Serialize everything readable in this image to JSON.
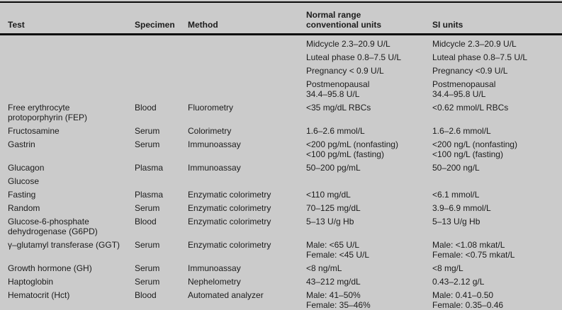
{
  "colors": {
    "background": "#cbcbcb",
    "text": "#1c1c1c",
    "rule": "#0a0a0a"
  },
  "table": {
    "header": {
      "test": "Test",
      "specimen": "Specimen",
      "method": "Method",
      "conventional": "Normal range\nconventional units",
      "si": "SI units"
    },
    "rows": [
      {
        "test": "",
        "specimen": "",
        "method": "",
        "conventional": "Midcycle 2.3–20.9 U/L",
        "si": "Midcycle 2.3–20.9 U/L"
      },
      {
        "test": "",
        "specimen": "",
        "method": "",
        "conventional": "Luteal phase 0.8–7.5 U/L",
        "si": "Luteal phase 0.8–7.5 U/L"
      },
      {
        "test": "",
        "specimen": "",
        "method": "",
        "conventional": "Pregnancy < 0.9 U/L",
        "si": "Pregnancy <0.9 U/L"
      },
      {
        "test": "",
        "specimen": "",
        "method": "",
        "conventional": "Postmenopausal\n34.4–95.8 U/L",
        "si": "Postmenopausal\n34.4–95.8 U/L"
      },
      {
        "test": "Free erythrocyte\nprotoporphyrin (FEP)",
        "specimen": "Blood",
        "method": "Fluorometry",
        "conventional": "<35 mg/dL RBCs",
        "si": "<0.62 mmol/L RBCs"
      },
      {
        "test": "Fructosamine",
        "specimen": "Serum",
        "method": "Colorimetry",
        "conventional": "1.6–2.6 mmol/L",
        "si": "1.6–2.6 mmol/L"
      },
      {
        "test": "Gastrin",
        "specimen": "Serum",
        "method": "Immunoassay",
        "conventional": "<200 pg/mL (nonfasting)\n<100 pg/mL (fasting)",
        "si": "<200 ng/L (nonfasting)\n<100 ng/L (fasting)"
      },
      {
        "test": "Glucagon",
        "specimen": "Plasma",
        "method": "Immunoassay",
        "conventional": "50–200 pg/mL",
        "si": "50–200 ng/L"
      },
      {
        "test": "Glucose",
        "specimen": "",
        "method": "",
        "conventional": "",
        "si": ""
      },
      {
        "test": "Fasting",
        "specimen": "Plasma",
        "method": "Enzymatic colorimetry",
        "conventional": "<110 mg/dL",
        "si": "<6.1 mmol/L"
      },
      {
        "test": "Random",
        "specimen": "Serum",
        "method": "Enzymatic colorimetry",
        "conventional": "70–125 mg/dL",
        "si": "3.9–6.9 mmol/L"
      },
      {
        "test": "Glucose-6-phosphate\ndehydrogenase (G6PD)",
        "specimen": "Blood",
        "method": "Enzymatic colorimetry",
        "conventional": "5–13 U/g Hb",
        "si": "5–13 U/g Hb"
      },
      {
        "test": "γ–glutamyl transferase (GGT)",
        "specimen": "Serum",
        "method": "Enzymatic colorimetry",
        "conventional": "Male: <65 U/L\nFemale: <45 U/L",
        "si": "Male: <1.08 mkat/L\nFemale: <0.75 mkat/L"
      },
      {
        "test": "Growth hormone (GH)",
        "specimen": "Serum",
        "method": "Immunoassay",
        "conventional": "<8 ng/mL",
        "si": "<8 mg/L"
      },
      {
        "test": "Haptoglobin",
        "specimen": "Serum",
        "method": "Nephelometry",
        "conventional": "43–212 mg/dL",
        "si": "0.43–2.12 g/L"
      },
      {
        "test": "Hematocrit (Hct)",
        "specimen": "Blood",
        "method": "Automated analyzer",
        "conventional": "Male: 41–50%\nFemale: 35–46%",
        "si": "Male: 0.41–0.50\nFemale: 0.35–0.46"
      }
    ]
  }
}
